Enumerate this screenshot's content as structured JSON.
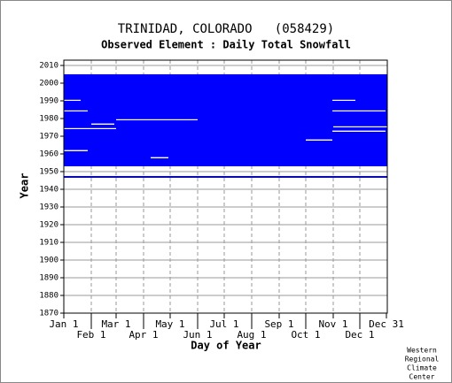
{
  "chart_data": {
    "type": "coverage",
    "title": "TRINIDAD, COLORADO   (058429)",
    "subtitle": "Observed Element : Daily Total Snowfall",
    "x_label": "Day of Year",
    "y_label": "Year",
    "credit": [
      "Western",
      "Regional",
      "Climate",
      "Center"
    ],
    "xlim": [
      1,
      366
    ],
    "ylim": [
      1870,
      2013
    ],
    "xticks": [
      {
        "value": 1,
        "label": "Jan 1"
      },
      {
        "value": 32,
        "label": "Feb 1"
      },
      {
        "value": 60,
        "label": "Mar 1"
      },
      {
        "value": 91,
        "label": "Apr 1"
      },
      {
        "value": 121,
        "label": "May 1"
      },
      {
        "value": 152,
        "label": "Jun 1"
      },
      {
        "value": 182,
        "label": "Jul 1"
      },
      {
        "value": 213,
        "label": "Aug 1"
      },
      {
        "value": 244,
        "label": "Sep 1"
      },
      {
        "value": 274,
        "label": "Oct 1"
      },
      {
        "value": 305,
        "label": "Nov 1"
      },
      {
        "value": 335,
        "label": "Dec 1"
      },
      {
        "value": 365,
        "label": "Dec 31"
      }
    ],
    "yticks": [
      1870,
      1880,
      1890,
      1900,
      1910,
      1920,
      1930,
      1940,
      1950,
      1960,
      1970,
      1980,
      1990,
      2000,
      2010
    ],
    "grid": true,
    "color": "#0000ff",
    "missing_color": "#ffffff",
    "records": [
      {
        "day_start": 1,
        "day_end": 366,
        "year_start": 1953,
        "year_end": 2005
      },
      {
        "day_start": 1,
        "day_end": 366,
        "year_start": 1946.5,
        "year_end": 1947.5
      }
    ],
    "missing": [
      {
        "day_start": 60,
        "day_end": 152,
        "year_start": 1979,
        "year_end": 1979.6
      },
      {
        "day_start": 1,
        "day_end": 28,
        "year_start": 1984,
        "year_end": 1984.6
      },
      {
        "day_start": 304,
        "day_end": 364,
        "year_start": 1984,
        "year_end": 1984.6
      },
      {
        "day_start": 274,
        "day_end": 304,
        "year_start": 1967.5,
        "year_end": 1968.2
      },
      {
        "day_start": 304,
        "day_end": 364,
        "year_start": 1972.5,
        "year_end": 1973.2
      },
      {
        "day_start": 1,
        "day_end": 28,
        "year_start": 1961.5,
        "year_end": 1962.2
      },
      {
        "day_start": 99,
        "day_end": 119,
        "year_start": 1957.5,
        "year_end": 1958.2
      },
      {
        "day_start": 32,
        "day_end": 58,
        "year_start": 1976.5,
        "year_end": 1977.2
      },
      {
        "day_start": 1,
        "day_end": 20,
        "year_start": 1990,
        "year_end": 1990.6
      },
      {
        "day_start": 304,
        "day_end": 330,
        "year_start": 1990,
        "year_end": 1990.6
      },
      {
        "day_start": 1,
        "day_end": 60,
        "year_start": 1974,
        "year_end": 1974.6
      },
      {
        "day_start": 305,
        "day_end": 366,
        "year_start": 1975,
        "year_end": 1975.6
      }
    ]
  }
}
